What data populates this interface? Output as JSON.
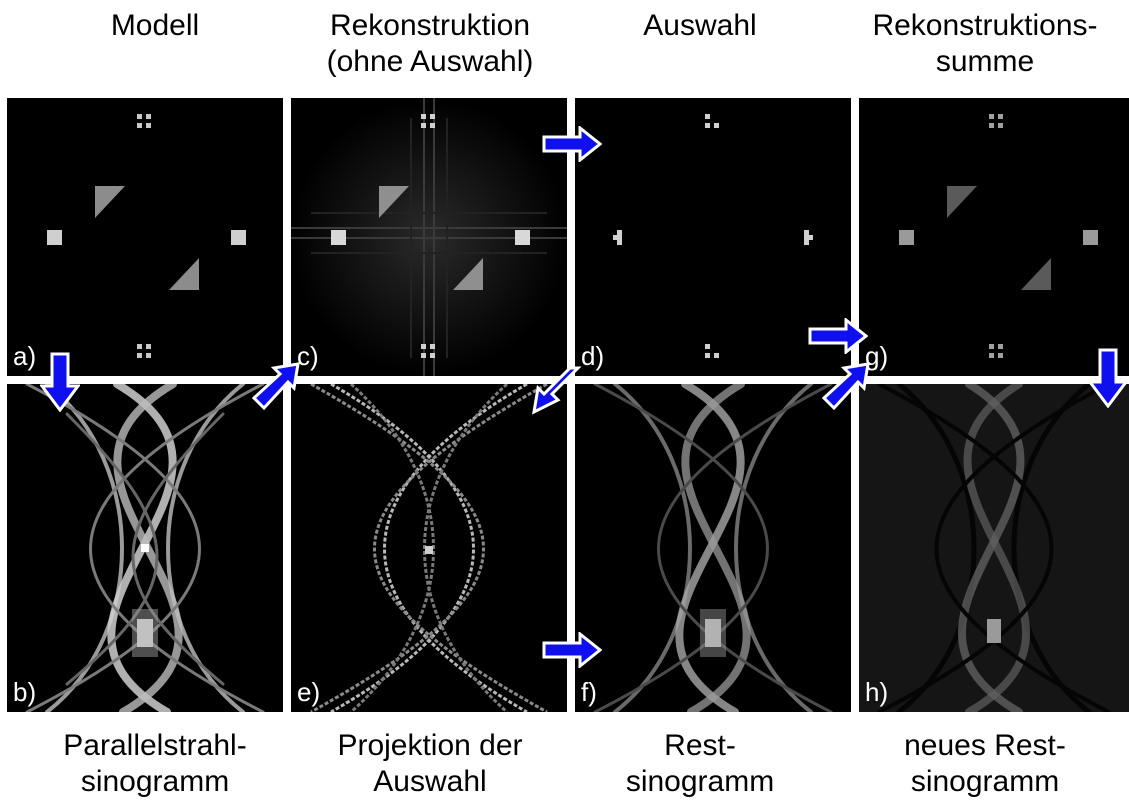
{
  "titles": {
    "top": [
      "Modell",
      "Rekonstruktion\n(ohne Auswahl)",
      "Auswahl",
      "Rekonstruktions-\nsumme"
    ],
    "bottom": [
      "Parallelstrahl-\nsinogramm",
      "Projektion der\nAuswahl",
      "Rest-\nsinogramm",
      "neues Rest-\nsinogramm"
    ]
  },
  "panels": {
    "a": "a)",
    "b": "b)",
    "c": "c)",
    "d": "d)",
    "e": "e)",
    "f": "f)",
    "g": "g)",
    "h": "h)"
  },
  "colors": {
    "arrow": "#1010ee",
    "arrow_outline": "#ffffff",
    "background": "#000000"
  }
}
